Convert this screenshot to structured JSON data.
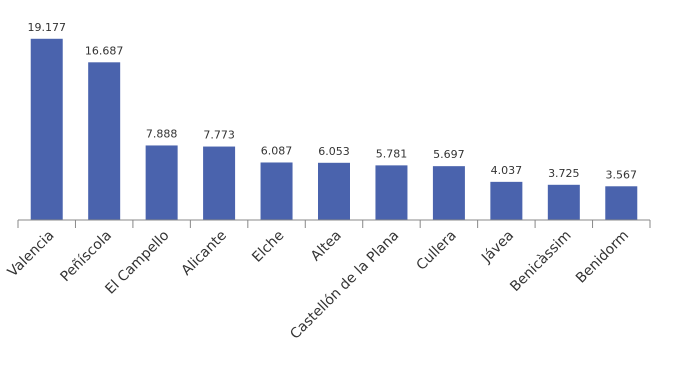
{
  "chart_data": {
    "type": "bar",
    "categories": [
      "Valencia",
      "Peñíscola",
      "El Campello",
      "Alicante",
      "Elche",
      "Altea",
      "Castellón de la Plana",
      "Cullera",
      "Jávea",
      "Benicàssim",
      "Benidorm"
    ],
    "values": [
      19.177,
      16.687,
      7.888,
      7.773,
      6.087,
      6.053,
      5.781,
      5.697,
      4.037,
      3.725,
      3.567
    ],
    "value_labels": [
      "19.177",
      "16.687",
      "7.888",
      "7.773",
      "6.087",
      "6.053",
      "5.781",
      "5.697",
      "4.037",
      "3.725",
      "3.567"
    ],
    "title": "",
    "xlabel": "",
    "ylabel": "",
    "ylim": [
      0,
      20
    ],
    "grid": false,
    "legend": "none",
    "bar_color": "#4a63ad",
    "axis_color": "#888888",
    "text_color": "#333333"
  }
}
